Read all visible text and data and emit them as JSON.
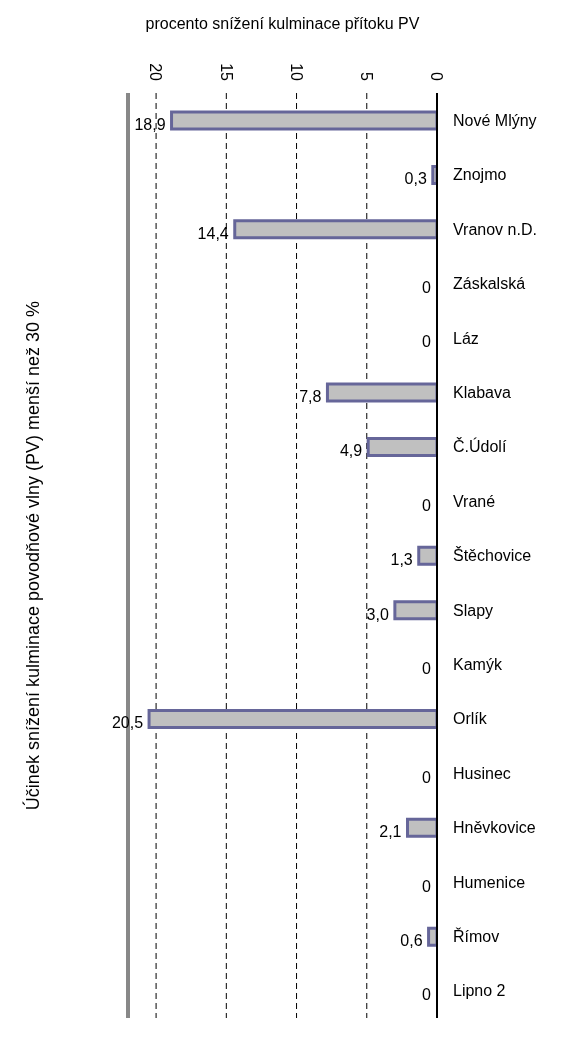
{
  "chart_data": {
    "type": "bar",
    "orientation": "horizontal",
    "xlabel": "procento snížení kulminace přítoku PV",
    "ylabel": "Účinek snížení kulminace povodňové vlny (PV)  menší než 30 %",
    "categories": [
      "Nové Mlýny",
      "Znojmo",
      "Vranov n.D.",
      "Záskalská",
      "Láz",
      "Klabava",
      "Č.Údolí",
      "Vrané",
      "Štěchovice",
      "Slapy",
      "Kamýk",
      "Orlík",
      "Husinec",
      "Hněvkovice",
      "Humenice",
      "Římov",
      "Lipno 2"
    ],
    "values": [
      18.9,
      0.3,
      14.4,
      0,
      0,
      7.8,
      4.9,
      0,
      1.3,
      3.0,
      0,
      20.5,
      0,
      2.1,
      0,
      0.6,
      0
    ],
    "value_labels": [
      "18,9",
      "0,3",
      "14,4",
      "0",
      "0",
      "7,8",
      "4,9",
      "0",
      "1,3",
      "3,0",
      "0",
      "20,5",
      "0",
      "2,1",
      "0",
      "0,6",
      "0"
    ],
    "color": "#c0c0c0",
    "xlim": [
      22,
      0
    ],
    "xticks": [
      0,
      5,
      10,
      15,
      20
    ],
    "grid": "x"
  }
}
